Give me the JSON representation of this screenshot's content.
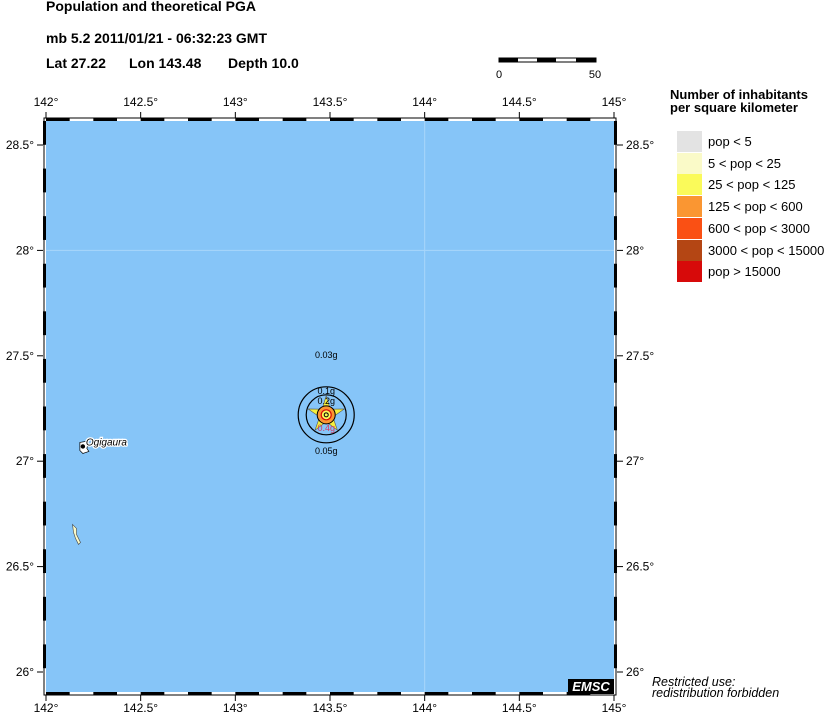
{
  "header": {
    "title": "Population and theoretical PGA",
    "event": "mb 5.2  2011/01/21 - 06:32:23 GMT",
    "lat_label": "Lat 27.22",
    "lon_label": "Lon 143.48",
    "depth_label": "Depth  10.0"
  },
  "scale_bar": {
    "start": "0",
    "end": "50"
  },
  "map": {
    "ocean_color": "#86c5f8",
    "lon_ticks": [
      "142°",
      "142.5°",
      "143°",
      "143.5°",
      "144°",
      "144.5°",
      "145°"
    ],
    "lat_ticks": [
      "28.5°",
      "28°",
      "27.5°",
      "27°",
      "26.5°",
      "26°"
    ],
    "epicenter": {
      "lat": 27.22,
      "lon": 143.48
    },
    "pga_labels": [
      "0.03g",
      "0.05g",
      "0.1g",
      "0.2g",
      "0.4g"
    ],
    "place": {
      "name": "Ogigaura",
      "lat": 27.07,
      "lon": 142.2
    }
  },
  "legend": {
    "title_line1": "Number of inhabitants",
    "title_line2": "per square kilometer",
    "items": [
      {
        "label": "pop < 5",
        "color": "#e3e3e3"
      },
      {
        "label": "5 < pop < 25",
        "color": "#fafac8"
      },
      {
        "label": "25 < pop < 125",
        "color": "#fafa5a"
      },
      {
        "label": "125 < pop < 600",
        "color": "#fa9632"
      },
      {
        "label": "600 < pop < 3000",
        "color": "#fa5014"
      },
      {
        "label": "3000 < pop < 15000",
        "color": "#b44614"
      },
      {
        "label": "pop > 15000",
        "color": "#d70a0a"
      }
    ]
  },
  "footer": {
    "logo": "EMSC",
    "restricted_line1": "Restricted use:",
    "restricted_line2": "redistribution forbidden"
  }
}
